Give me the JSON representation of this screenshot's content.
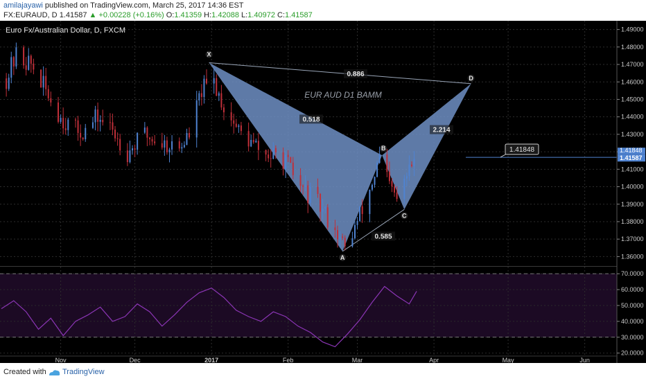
{
  "header": {
    "author": "amilajayawi",
    "published": "published on TradingView.com, March 25, 2017 14:36 EST",
    "symbol": "FX:EURAUD, D",
    "last": "1.41587",
    "change": "+0.00228 (+0.16%)",
    "open_label": "O:",
    "open": "1.41359",
    "high_label": "H:",
    "high": "1.42088",
    "low_label": "L:",
    "low": "1.40972",
    "close_label": "C:",
    "close": "1.41587"
  },
  "footer": {
    "created": "Created with",
    "brand": "TradingView"
  },
  "chart_data": {
    "type": "candlestick",
    "title": "Euro Fx/Australian Dollar, D, FXCM",
    "annotation": "EUR AUD D1 BAMM",
    "colors": {
      "up": "#4f83d1",
      "down": "#c0303a",
      "pattern": "#6f8fc4",
      "rsi": "#8b35b5",
      "background": "#000000"
    },
    "ylim": [
      1.355,
      1.495
    ],
    "yticks": [
      "1.49000",
      "1.48000",
      "1.47000",
      "1.46000",
      "1.45000",
      "1.44000",
      "1.43000",
      "1.42000",
      "1.41000",
      "1.40000",
      "1.39000",
      "1.38000",
      "1.37000",
      "1.36000"
    ],
    "xlim": [
      "2016-10-08",
      "2017-06-14"
    ],
    "xticks": [
      {
        "label": "Nov",
        "date": "2016-11-01"
      },
      {
        "label": "Dec",
        "date": "2016-12-01"
      },
      {
        "label": "2017",
        "date": "2017-01-01"
      },
      {
        "label": "Feb",
        "date": "2017-02-01"
      },
      {
        "label": "Mar",
        "date": "2017-03-01"
      },
      {
        "label": "Apr",
        "date": "2017-04-01"
      },
      {
        "label": "May",
        "date": "2017-05-01"
      },
      {
        "label": "Jun",
        "date": "2017-06-01"
      }
    ],
    "close_path": [
      [
        "2016-10-10",
        1.462
      ],
      [
        "2016-10-14",
        1.475
      ],
      [
        "2016-10-20",
        1.47
      ],
      [
        "2016-10-26",
        1.455
      ],
      [
        "2016-11-01",
        1.44
      ],
      [
        "2016-11-07",
        1.432
      ],
      [
        "2016-11-11",
        1.432
      ],
      [
        "2016-11-16",
        1.44
      ],
      [
        "2016-11-22",
        1.432
      ],
      [
        "2016-11-28",
        1.42
      ],
      [
        "2016-12-05",
        1.43
      ],
      [
        "2016-12-12",
        1.425
      ],
      [
        "2016-12-19",
        1.422
      ],
      [
        "2016-12-23",
        1.43
      ],
      [
        "2016-12-28",
        1.455
      ],
      [
        "2017-01-02",
        1.46
      ],
      [
        "2017-01-06",
        1.446
      ],
      [
        "2017-01-12",
        1.432
      ],
      [
        "2017-01-17",
        1.425
      ],
      [
        "2017-01-23",
        1.418
      ],
      [
        "2017-01-30",
        1.416
      ],
      [
        "2017-02-06",
        1.4
      ],
      [
        "2017-02-13",
        1.39
      ],
      [
        "2017-02-20",
        1.376
      ],
      [
        "2017-02-24",
        1.364
      ],
      [
        "2017-03-01",
        1.38
      ],
      [
        "2017-03-06",
        1.398
      ],
      [
        "2017-03-10",
        1.416
      ],
      [
        "2017-03-14",
        1.4
      ],
      [
        "2017-03-17",
        1.392
      ],
      [
        "2017-03-21",
        1.406
      ],
      [
        "2017-03-24",
        1.416
      ]
    ],
    "series": [
      {
        "name": "",
        "kind": "pattern",
        "points": [
          {
            "label": "X",
            "date": "2016-12-31",
            "value": 1.471
          },
          {
            "label": "A",
            "date": "2017-02-23",
            "value": 1.363
          },
          {
            "label": "B",
            "date": "2017-03-11",
            "value": 1.418
          },
          {
            "label": "C",
            "date": "2017-03-20",
            "value": 1.387
          },
          {
            "label": "D",
            "date": "2017-04-16",
            "value": 1.459
          }
        ]
      }
    ],
    "ratios": [
      {
        "text": "0.886",
        "from": "X",
        "to": "D"
      },
      {
        "text": "0.518",
        "from": "X",
        "to": "B"
      },
      {
        "text": "0.585",
        "from": "A",
        "to": "C"
      },
      {
        "text": "2.214",
        "from": "B",
        "to": "D"
      }
    ],
    "price_label": "1.41848",
    "price_label_level": 1.41848,
    "hline": 1.4168,
    "last_price": "1.41587",
    "last_price_overlap": "1.41848",
    "rsi": {
      "ylim": [
        19,
        74
      ],
      "ticks": [
        "70.0000",
        "60.0000",
        "50.0000",
        "40.0000",
        "30.0000",
        "20.0000"
      ],
      "bands": [
        70,
        30
      ],
      "values": [
        [
          "2016-10-08",
          48
        ],
        [
          "2016-10-13",
          53
        ],
        [
          "2016-10-18",
          46
        ],
        [
          "2016-10-23",
          35
        ],
        [
          "2016-10-28",
          42
        ],
        [
          "2016-11-02",
          31
        ],
        [
          "2016-11-07",
          40
        ],
        [
          "2016-11-12",
          44
        ],
        [
          "2016-11-17",
          49
        ],
        [
          "2016-11-22",
          40
        ],
        [
          "2016-11-27",
          43
        ],
        [
          "2016-12-02",
          51
        ],
        [
          "2016-12-07",
          46
        ],
        [
          "2016-12-12",
          37
        ],
        [
          "2016-12-17",
          44
        ],
        [
          "2016-12-22",
          52
        ],
        [
          "2016-12-27",
          58
        ],
        [
          "2017-01-01",
          61
        ],
        [
          "2017-01-06",
          55
        ],
        [
          "2017-01-11",
          47
        ],
        [
          "2017-01-16",
          43
        ],
        [
          "2017-01-21",
          40
        ],
        [
          "2017-01-26",
          46
        ],
        [
          "2017-01-31",
          43
        ],
        [
          "2017-02-05",
          37
        ],
        [
          "2017-02-10",
          33
        ],
        [
          "2017-02-15",
          27
        ],
        [
          "2017-02-20",
          24
        ],
        [
          "2017-02-25",
          32
        ],
        [
          "2017-03-02",
          41
        ],
        [
          "2017-03-07",
          52
        ],
        [
          "2017-03-12",
          62
        ],
        [
          "2017-03-17",
          56
        ],
        [
          "2017-03-22",
          51
        ],
        [
          "2017-03-25",
          59
        ]
      ]
    }
  }
}
